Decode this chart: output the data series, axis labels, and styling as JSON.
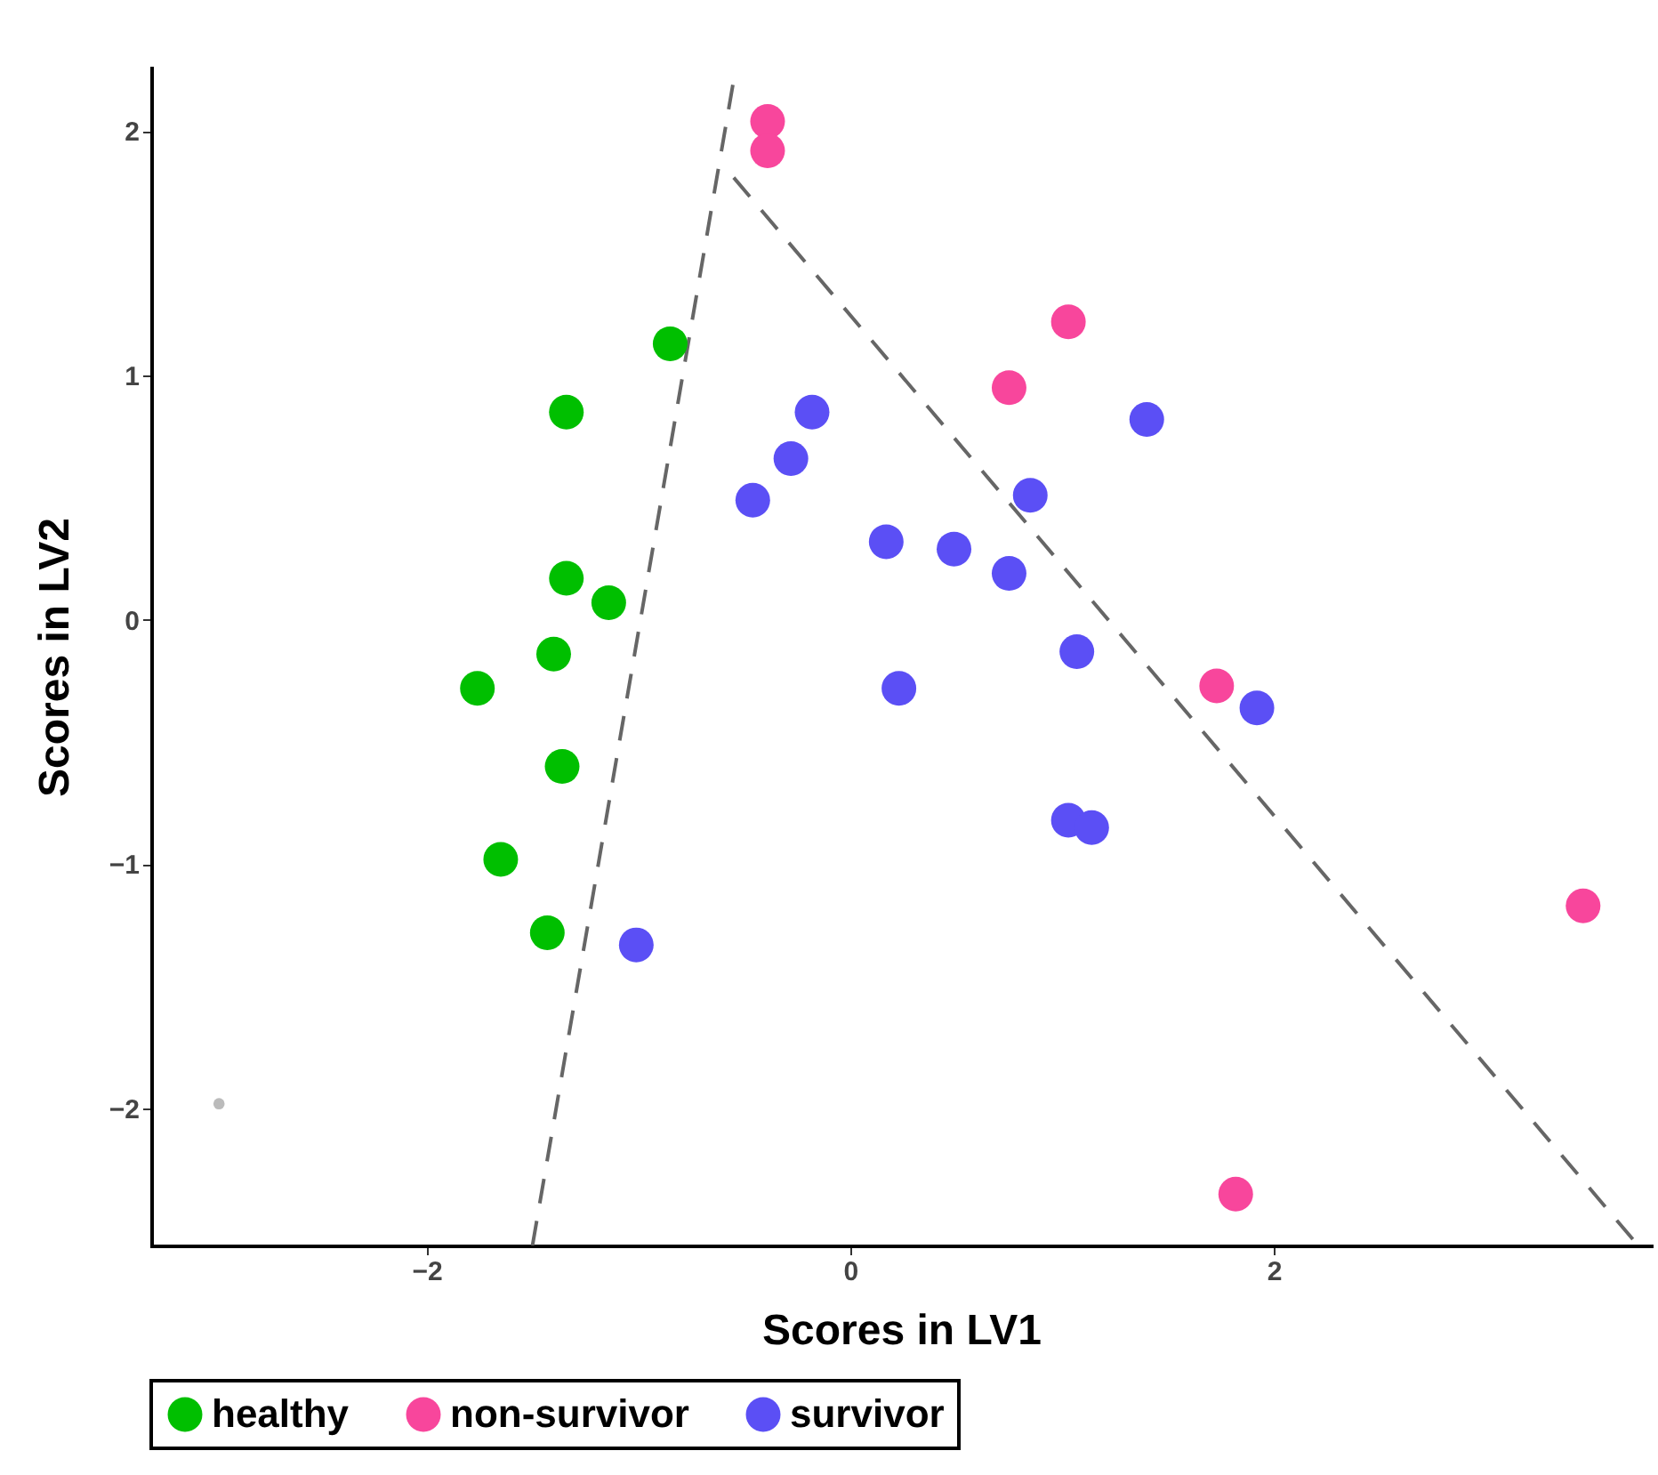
{
  "chart_data": {
    "type": "scatter",
    "xlabel": "Scores in LV1",
    "ylabel": "Scores in LV2",
    "xlim": [
      -3.3,
      3.78
    ],
    "ylim": [
      -2.56,
      2.26
    ],
    "xticks": [
      {
        "value": -2,
        "label": "−2"
      },
      0,
      2
    ],
    "yticks": [
      {
        "value": -2,
        "label": "−2"
      },
      {
        "value": -1,
        "label": "−1"
      },
      0,
      1,
      2
    ],
    "grid": false,
    "legend": "bottom",
    "marker": "circle",
    "series": [
      {
        "name": "healthy",
        "color": "#00bf00",
        "x": [
          -0.85,
          -1.34,
          -1.34,
          -1.14,
          -1.4,
          -1.76,
          -1.36,
          -1.65,
          -1.43
        ],
        "values": [
          1.13,
          0.85,
          0.17,
          0.07,
          -0.14,
          -0.28,
          -0.6,
          -0.98,
          -1.28
        ]
      },
      {
        "name": "non-survivor",
        "color": "#f8469c",
        "x": [
          -0.39,
          -0.39,
          1.03,
          0.75,
          1.73,
          3.46,
          1.82
        ],
        "values": [
          2.04,
          1.92,
          1.22,
          0.95,
          -0.27,
          -1.17,
          -2.35
        ]
      },
      {
        "name": "survivor",
        "color": "#5b4ff5",
        "x": [
          -0.18,
          -0.28,
          -0.46,
          1.4,
          0.85,
          0.17,
          0.49,
          0.75,
          1.07,
          0.23,
          1.92,
          1.03,
          1.14,
          -1.01
        ],
        "values": [
          0.85,
          0.66,
          0.49,
          0.82,
          0.51,
          0.32,
          0.29,
          0.19,
          -0.13,
          -0.28,
          -0.36,
          -0.82,
          -0.85,
          -1.33
        ]
      },
      {
        "color": "#bbbbbb",
        "x": [
          -2.98
        ],
        "values": [
          -1.98
        ]
      },
      {
        "type": "line",
        "color": "#666666",
        "line_style": "dashed",
        "marker": "none",
        "x": [
          -1.5,
          -0.54
        ],
        "values": [
          -2.56,
          2.26
        ]
      },
      {
        "type": "line",
        "color": "#666666",
        "line_style": "dashed",
        "marker": "none",
        "x": [
          -0.55,
          3.7
        ],
        "values": [
          1.81,
          -2.54
        ]
      }
    ]
  }
}
